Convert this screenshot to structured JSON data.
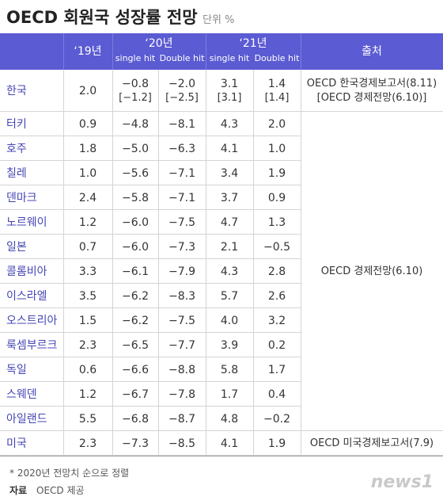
{
  "header": {
    "title": "OECD 회원국 성장률 전망",
    "unit": "단위 %"
  },
  "table": {
    "columns": {
      "y19": "‘19년",
      "y20": "‘20년",
      "y21": "‘21년",
      "single": "single hit",
      "double": "Double hit",
      "single2": "single hit",
      "double2": "Double hit",
      "source": "출처"
    },
    "rows": [
      {
        "name": "한국",
        "cells": [
          [
            "2.0"
          ],
          [
            "−0.8",
            "[−1.2]"
          ],
          [
            "−2.0",
            "[−2.5]"
          ],
          [
            "3.1",
            "[3.1]"
          ],
          [
            "1.4",
            "[1.4]"
          ]
        ]
      },
      {
        "name": "터키",
        "cells": [
          [
            "0.9"
          ],
          [
            "−4.8"
          ],
          [
            "−8.1"
          ],
          [
            "4.3"
          ],
          [
            "2.0"
          ]
        ]
      },
      {
        "name": "호주",
        "cells": [
          [
            "1.8"
          ],
          [
            "−5.0"
          ],
          [
            "−6.3"
          ],
          [
            "4.1"
          ],
          [
            "1.0"
          ]
        ]
      },
      {
        "name": "칠레",
        "cells": [
          [
            "1.0"
          ],
          [
            "−5.6"
          ],
          [
            "−7.1"
          ],
          [
            "3.4"
          ],
          [
            "1.9"
          ]
        ]
      },
      {
        "name": "덴마크",
        "cells": [
          [
            "2.4"
          ],
          [
            "−5.8"
          ],
          [
            "−7.1"
          ],
          [
            "3.7"
          ],
          [
            "0.9"
          ]
        ]
      },
      {
        "name": "노르웨이",
        "cells": [
          [
            "1.2"
          ],
          [
            "−6.0"
          ],
          [
            "−7.5"
          ],
          [
            "4.7"
          ],
          [
            "1.3"
          ]
        ]
      },
      {
        "name": "일본",
        "cells": [
          [
            "0.7"
          ],
          [
            "−6.0"
          ],
          [
            "−7.3"
          ],
          [
            "2.1"
          ],
          [
            "−0.5"
          ]
        ]
      },
      {
        "name": "콜롬비아",
        "cells": [
          [
            "3.3"
          ],
          [
            "−6.1"
          ],
          [
            "−7.9"
          ],
          [
            "4.3"
          ],
          [
            "2.8"
          ]
        ]
      },
      {
        "name": "이스라엘",
        "cells": [
          [
            "3.5"
          ],
          [
            "−6.2"
          ],
          [
            "−8.3"
          ],
          [
            "5.7"
          ],
          [
            "2.6"
          ]
        ]
      },
      {
        "name": "오스트리아",
        "cells": [
          [
            "1.5"
          ],
          [
            "−6.2"
          ],
          [
            "−7.5"
          ],
          [
            "4.0"
          ],
          [
            "3.2"
          ]
        ]
      },
      {
        "name": "룩셈부르크",
        "cells": [
          [
            "2.3"
          ],
          [
            "−6.5"
          ],
          [
            "−7.7"
          ],
          [
            "3.9"
          ],
          [
            "0.2"
          ]
        ]
      },
      {
        "name": "독일",
        "cells": [
          [
            "0.6"
          ],
          [
            "−6.6"
          ],
          [
            "−8.8"
          ],
          [
            "5.8"
          ],
          [
            "1.7"
          ]
        ]
      },
      {
        "name": "스웨덴",
        "cells": [
          [
            "1.2"
          ],
          [
            "−6.7"
          ],
          [
            "−7.8"
          ],
          [
            "1.7"
          ],
          [
            "0.4"
          ]
        ]
      },
      {
        "name": "아일랜드",
        "cells": [
          [
            "5.5"
          ],
          [
            "−6.8"
          ],
          [
            "−8.7"
          ],
          [
            "4.8"
          ],
          [
            "−0.2"
          ]
        ]
      },
      {
        "name": "미국",
        "cells": [
          [
            "2.3"
          ],
          [
            "−7.3"
          ],
          [
            "−8.5"
          ],
          [
            "4.1"
          ],
          [
            "1.9"
          ]
        ]
      }
    ],
    "sources": [
      {
        "from": 0,
        "to": 0,
        "lines": [
          "OECD 한국경제보고서(8.11)",
          "[OECD 경제전망(6.10)]"
        ]
      },
      {
        "from": 1,
        "to": 13,
        "lines": [
          "OECD 경제전망(6.10)"
        ]
      },
      {
        "from": 14,
        "to": 14,
        "lines": [
          "OECD 미국경제보고서(7.9)"
        ]
      }
    ]
  },
  "footer": {
    "note": "* 2020년 전망치 순으로 정렬",
    "source_label": "자료",
    "source": "OECD 제공",
    "logo": "news1"
  }
}
